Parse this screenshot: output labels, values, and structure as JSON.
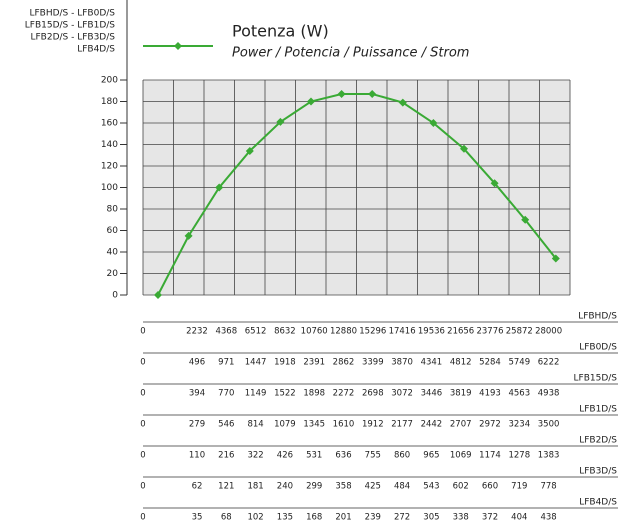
{
  "chart_data": {
    "type": "line",
    "title": "Potenza (W)",
    "subtitle": "Power / Potencia / Puissance / Strom",
    "models": [
      "LFBHD/S - LFB0D/S",
      "LFB15D/S - LFB1D/S",
      "LFB2D/S - LFB3D/S",
      "LFB4D/S"
    ],
    "series": [
      {
        "color": "#3aaa35",
        "values": [
          0,
          55,
          100,
          134,
          161,
          180,
          187,
          187,
          179,
          160,
          136,
          104,
          70,
          34
        ]
      }
    ],
    "ylim": [
      0,
      200
    ],
    "yticks": [
      0,
      20,
      40,
      60,
      80,
      100,
      120,
      140,
      160,
      180,
      200
    ],
    "grid": true,
    "x_axes": [
      {
        "name": "LFBHD/S",
        "labels": [
          0,
          2232,
          4368,
          6512,
          8632,
          10760,
          12880,
          15296,
          17416,
          19536,
          21656,
          23776,
          25872,
          28000
        ]
      },
      {
        "name": "LFB0D/S",
        "labels": [
          0,
          496,
          971,
          1447,
          1918,
          2391,
          2862,
          3399,
          3870,
          4341,
          4812,
          5284,
          5749,
          6222
        ]
      },
      {
        "name": "LFB15D/S",
        "labels": [
          0,
          394,
          770,
          1149,
          1522,
          1898,
          2272,
          2698,
          3072,
          3446,
          3819,
          4193,
          4563,
          4938
        ]
      },
      {
        "name": "LFB1D/S",
        "labels": [
          0,
          279,
          546,
          814,
          1079,
          1345,
          1610,
          1912,
          2177,
          2442,
          2707,
          2972,
          3234,
          3500
        ]
      },
      {
        "name": "LFB2D/S",
        "labels": [
          0,
          110,
          216,
          322,
          426,
          531,
          636,
          755,
          860,
          965,
          1069,
          1174,
          1278,
          1383
        ]
      },
      {
        "name": "LFB3D/S",
        "labels": [
          0,
          62,
          121,
          181,
          240,
          299,
          358,
          425,
          484,
          543,
          602,
          660,
          719,
          778
        ]
      },
      {
        "name": "LFB4D/S",
        "labels": [
          0,
          35,
          68,
          102,
          135,
          168,
          201,
          239,
          272,
          305,
          338,
          372,
          404,
          438
        ]
      }
    ]
  }
}
